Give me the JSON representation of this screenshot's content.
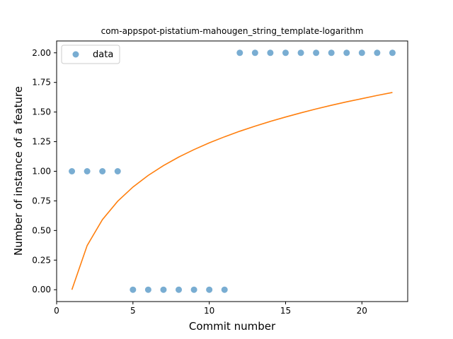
{
  "chart_data": {
    "type": "scatter",
    "title": "com-appspot-pistatium-mahougen_string_template-logarithm",
    "xlabel": "Commit number",
    "ylabel": "Number of instance of a feature",
    "xlim": [
      0,
      23
    ],
    "ylim": [
      -0.1,
      2.1
    ],
    "xticks": [
      0,
      5,
      10,
      15,
      20
    ],
    "yticks": [
      0.0,
      0.25,
      0.5,
      0.75,
      1.0,
      1.25,
      1.5,
      1.75,
      2.0
    ],
    "xtick_labels": [
      "0",
      "5",
      "10",
      "15",
      "20"
    ],
    "ytick_labels": [
      "0.00",
      "0.25",
      "0.50",
      "0.75",
      "1.00",
      "1.25",
      "1.50",
      "1.75",
      "2.00"
    ],
    "grid": false,
    "legend_position": "top-left",
    "series": [
      {
        "name": "data",
        "kind": "scatter",
        "color": "#1f77b4",
        "x": [
          1,
          2,
          3,
          4,
          5,
          6,
          7,
          8,
          9,
          10,
          11,
          12,
          13,
          14,
          15,
          16,
          17,
          18,
          19,
          20,
          21,
          22
        ],
        "y": [
          1,
          1,
          1,
          1,
          0,
          0,
          0,
          0,
          0,
          0,
          0,
          2,
          2,
          2,
          2,
          2,
          2,
          2,
          2,
          2,
          2,
          2
        ]
      },
      {
        "kind": "line",
        "color": "#ff7f0e",
        "x": [
          1,
          2,
          3,
          4,
          5,
          6,
          7,
          8,
          9,
          10,
          11,
          12,
          13,
          14,
          15,
          16,
          17,
          18,
          19,
          20,
          21,
          22
        ],
        "y": [
          0.0,
          0.373,
          0.592,
          0.747,
          0.867,
          0.965,
          1.048,
          1.12,
          1.183,
          1.24,
          1.291,
          1.338,
          1.381,
          1.421,
          1.458,
          1.493,
          1.526,
          1.557,
          1.586,
          1.613,
          1.64,
          1.665
        ]
      }
    ]
  }
}
